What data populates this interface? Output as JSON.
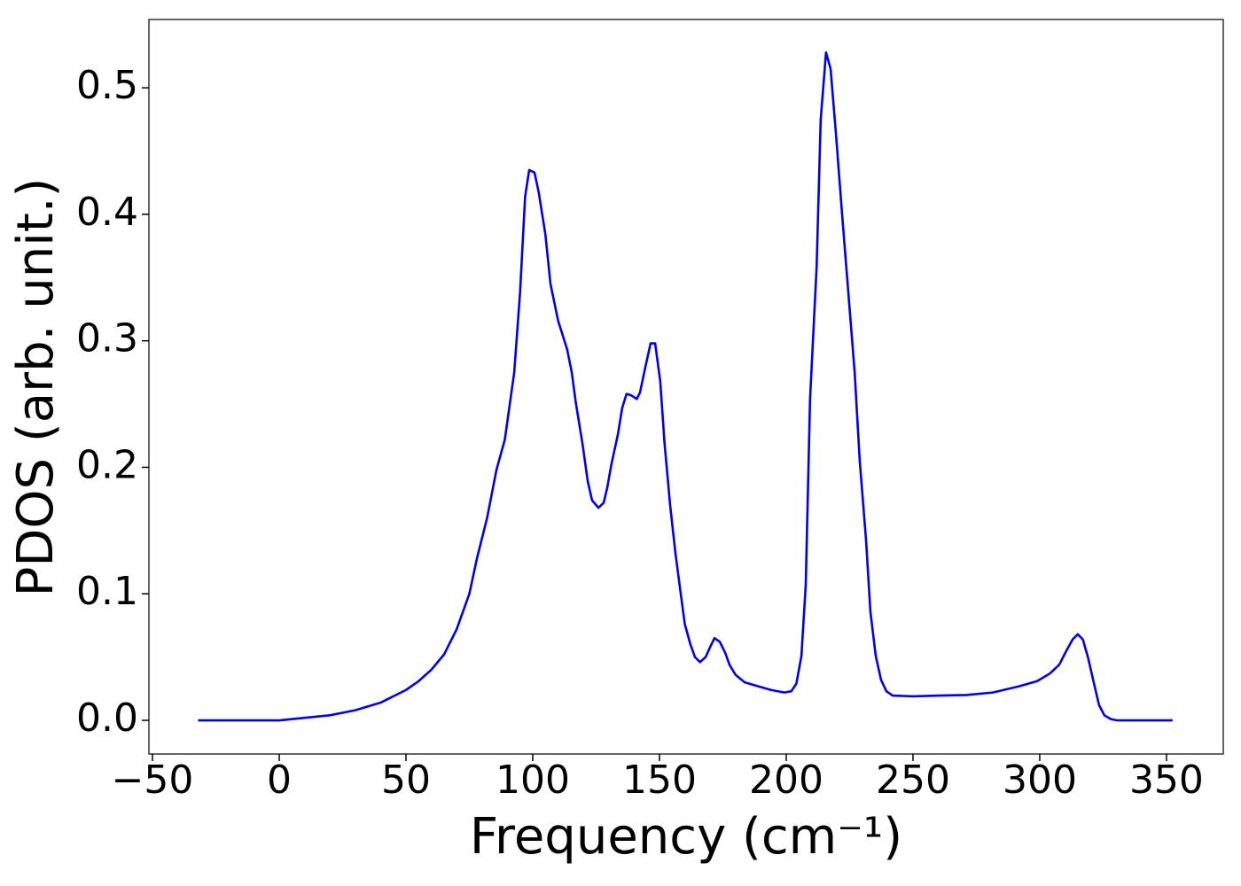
{
  "chart_data": {
    "type": "line",
    "xlabel": "Frequency (cm⁻¹)",
    "ylabel": "PDOS (arb. unit.)",
    "xlim": [
      -51.4,
      372.4
    ],
    "ylim": [
      -0.0266,
      0.554
    ],
    "xticks": [
      {
        "value": -50,
        "label": "−50"
      },
      0,
      50,
      100,
      150,
      200,
      250,
      300,
      350
    ],
    "yticks": [
      {
        "value": 0,
        "label": "0.0"
      },
      0.1,
      0.2,
      0.3,
      0.4,
      0.5
    ],
    "grid": false,
    "x": [
      -32,
      -10,
      0,
      10,
      20,
      30,
      40,
      50,
      55,
      60,
      65,
      70,
      75,
      78,
      82,
      85.7,
      89,
      92.7,
      95,
      97,
      98.6,
      100.7,
      102.4,
      105,
      107,
      110,
      113.6,
      115.4,
      117,
      119.6,
      121.7,
      123.4,
      125.9,
      128,
      129.4,
      131,
      133.6,
      135.3,
      137,
      138.8,
      141,
      142.3,
      144.4,
      146.5,
      148.3,
      150.3,
      152,
      154.2,
      156.3,
      158.4,
      160,
      162.2,
      164,
      166,
      168.2,
      170,
      171.7,
      173.8,
      176,
      177.6,
      180,
      183.6,
      188.8,
      194,
      199.3,
      202,
      204,
      206,
      207.7,
      209.4,
      212,
      213.6,
      215.7,
      217.5,
      219.6,
      222,
      224.5,
      227,
      229,
      231.5,
      233.2,
      235.3,
      237.4,
      239.5,
      242,
      250,
      260.5,
      271,
      281.5,
      292,
      299,
      304,
      307.7,
      310.5,
      313,
      315,
      317,
      319,
      321.3,
      323.4,
      325.5,
      328,
      330.4,
      352.4
    ],
    "series": [
      {
        "name": "PDOS",
        "color": "#0000ee",
        "values": [
          0,
          0,
          0,
          0.002,
          0.004,
          0.008,
          0.014,
          0.024,
          0.031,
          0.04,
          0.052,
          0.072,
          0.1,
          0.128,
          0.16,
          0.198,
          0.222,
          0.275,
          0.338,
          0.414,
          0.435,
          0.433,
          0.417,
          0.384,
          0.345,
          0.316,
          0.293,
          0.275,
          0.251,
          0.219,
          0.189,
          0.174,
          0.168,
          0.172,
          0.184,
          0.202,
          0.226,
          0.247,
          0.258,
          0.257,
          0.254,
          0.259,
          0.279,
          0.298,
          0.298,
          0.268,
          0.219,
          0.17,
          0.132,
          0.1,
          0.076,
          0.06,
          0.05,
          0.046,
          0.05,
          0.058,
          0.065,
          0.062,
          0.053,
          0.044,
          0.036,
          0.03,
          0.027,
          0.024,
          0.022,
          0.023,
          0.029,
          0.051,
          0.107,
          0.254,
          0.359,
          0.475,
          0.528,
          0.515,
          0.464,
          0.401,
          0.338,
          0.275,
          0.205,
          0.142,
          0.086,
          0.051,
          0.032,
          0.023,
          0.0196,
          0.019,
          0.0196,
          0.02,
          0.022,
          0.027,
          0.031,
          0.037,
          0.044,
          0.055,
          0.064,
          0.068,
          0.064,
          0.05,
          0.03,
          0.012,
          0.004,
          0.001,
          0,
          0
        ]
      }
    ]
  }
}
